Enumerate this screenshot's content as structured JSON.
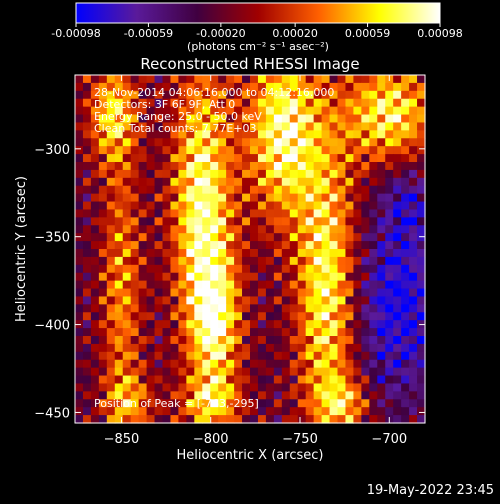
{
  "chart_data": {
    "type": "heatmap",
    "title": "Reconstructed RHESSI Image",
    "xlabel": "Heliocentric X (arcsec)",
    "ylabel": "Heliocentric Y (arcsec)",
    "xlim": [
      -876,
      -680
    ],
    "ylim": [
      -456,
      -258
    ],
    "xticks": [
      -850,
      -800,
      -750,
      -700
    ],
    "yticks": [
      -300,
      -350,
      -400,
      -450
    ],
    "colorbar": {
      "range": [
        -0.00098,
        0.00098
      ],
      "tick_values": [
        -0.00098,
        -0.00059,
        -0.0002,
        0.0002,
        0.00059,
        0.00098
      ],
      "tick_labels": [
        "-0.00098",
        "-0.00059",
        "-0.00020",
        "0.00020",
        "0.00059",
        "0.00098"
      ],
      "label": "(photons cm⁻² s⁻¹ asec⁻²)",
      "colors": [
        "#0000ff",
        "#5a1a9a",
        "#400040",
        "#a00000",
        "#ff6000",
        "#ffff00",
        "#ffffff"
      ]
    },
    "annotations": [
      "28-Nov-2014 04:06:16.000 to 04:12:16.000",
      "Detectors: 3F 6F 9F, Att 0",
      "Energy Range: 25.0 - 50.0 keV",
      "Clean  Total counts: 7.77E+03"
    ],
    "peak_label": "Position of Peak = [-763,-295]",
    "grid_size": [
      44,
      44
    ],
    "ridges": [
      {
        "x": -805,
        "y": -330,
        "sx": 12,
        "sy": 55,
        "amp": 1.0
      },
      {
        "x": -797,
        "y": -400,
        "sx": 10,
        "sy": 30,
        "amp": 0.8
      },
      {
        "x": -760,
        "y": -290,
        "sx": 14,
        "sy": 35,
        "amp": 1.0
      },
      {
        "x": -735,
        "y": -380,
        "sx": 12,
        "sy": 60,
        "amp": 0.95
      },
      {
        "x": -700,
        "y": -280,
        "sx": 18,
        "sy": 20,
        "amp": 0.9
      },
      {
        "x": -855,
        "y": -280,
        "sx": 10,
        "sy": 20,
        "amp": 0.75
      },
      {
        "x": -850,
        "y": -380,
        "sx": 8,
        "sy": 55,
        "amp": 0.6
      },
      {
        "x": -845,
        "y": -445,
        "sx": 10,
        "sy": 12,
        "amp": 0.5
      },
      {
        "x": -800,
        "y": -445,
        "sx": 12,
        "sy": 10,
        "amp": 0.6
      },
      {
        "x": -725,
        "y": -445,
        "sx": 10,
        "sy": 10,
        "amp": 0.55
      }
    ],
    "cold_regions": [
      {
        "x": -695,
        "y": -390,
        "sx": 18,
        "sy": 35,
        "amp": 1.0
      },
      {
        "x": -690,
        "y": -330,
        "sx": 10,
        "sy": 15,
        "amp": 0.6
      }
    ]
  },
  "footer": {
    "timestamp": "19-May-2022 23:45"
  }
}
